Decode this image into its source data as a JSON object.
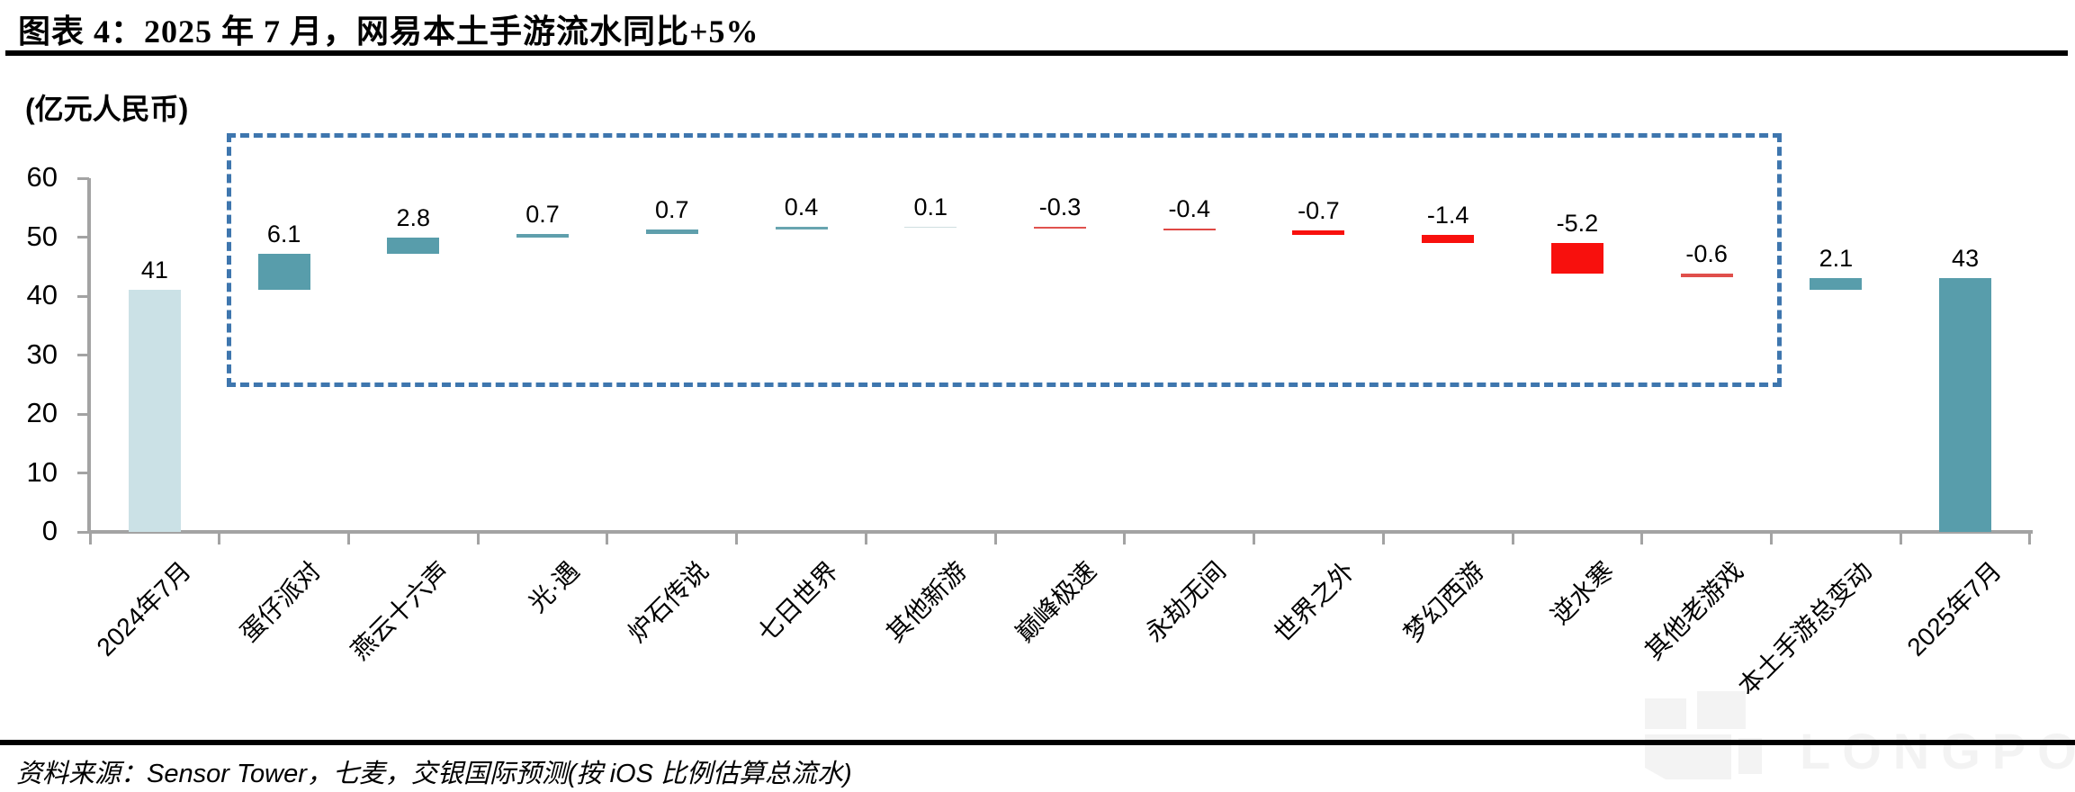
{
  "figure": {
    "title": "图表 4：2025 年 7 月，网易本土手游流水同比+5%",
    "source_note": "资料来源：Sensor Tower，七麦，交银国际预测(按 iOS 比例估算总流水)",
    "watermark": "LONGPORT"
  },
  "chart_data": {
    "type": "bar",
    "subtype": "waterfall",
    "title": "2025年7月，网易本土手游流水同比+5%",
    "unit_label": "(亿元人民币)",
    "xlabel": "",
    "ylabel": "亿元人民币",
    "ylim": [
      0,
      60
    ],
    "yticks": [
      0,
      10,
      20,
      30,
      40,
      50,
      60
    ],
    "grid": false,
    "legend": false,
    "categories": [
      "2024年7月",
      "蛋仔派对",
      "燕云十六声",
      "光·遇",
      "炉石传说",
      "七日世界",
      "其他新游",
      "巅峰极速",
      "永劫无间",
      "世界之外",
      "梦幻西游",
      "逆水寒",
      "其他老游戏",
      "本土手游总变动",
      "2025年7月"
    ],
    "points": [
      {
        "category": "2024年7月",
        "value": 41,
        "label": "41",
        "kind": "absolute",
        "color": "#cbe1e6"
      },
      {
        "category": "蛋仔派对",
        "value": 6.1,
        "label": "6.1",
        "kind": "delta",
        "color": "#589dab"
      },
      {
        "category": "燕云十六声",
        "value": 2.8,
        "label": "2.8",
        "kind": "delta",
        "color": "#589dab"
      },
      {
        "category": "光·遇",
        "value": 0.7,
        "label": "0.7",
        "kind": "delta",
        "color": "#5f9fac"
      },
      {
        "category": "炉石传说",
        "value": 0.7,
        "label": "0.7",
        "kind": "delta",
        "color": "#5f9fac"
      },
      {
        "category": "七日世界",
        "value": 0.4,
        "label": "0.4",
        "kind": "delta",
        "color": "#68a5b0"
      },
      {
        "category": "其他新游",
        "value": 0.1,
        "label": "0.1",
        "kind": "delta",
        "color": "#cfdfe0"
      },
      {
        "category": "巅峰极速",
        "value": -0.3,
        "label": "-0.3",
        "kind": "delta",
        "color": "#e0524e"
      },
      {
        "category": "永劫无间",
        "value": -0.4,
        "label": "-0.4",
        "kind": "delta",
        "color": "#df4844"
      },
      {
        "category": "世界之外",
        "value": -0.7,
        "label": "-0.7",
        "kind": "delta",
        "color": "#f8100d"
      },
      {
        "category": "梦幻西游",
        "value": -1.4,
        "label": "-1.4",
        "kind": "delta",
        "color": "#f8100d"
      },
      {
        "category": "逆水寒",
        "value": -5.2,
        "label": "-5.2",
        "kind": "delta",
        "color": "#f8100d"
      },
      {
        "category": "其他老游戏",
        "value": -0.6,
        "label": "-0.6",
        "kind": "delta",
        "color": "#e04f4b"
      },
      {
        "category": "本土手游总变动",
        "value": 2.1,
        "label": "2.1",
        "kind": "total-delta",
        "color": "#589dab"
      },
      {
        "category": "2025年7月",
        "value": 43,
        "label": "43",
        "kind": "absolute",
        "color": "#589dab"
      }
    ],
    "colors": {
      "start_bar": "#cbe1e6",
      "increase": "#589dab",
      "decrease": "#f8100d",
      "highlight_box": "#3e76ae",
      "axis": "#a3a3a3"
    },
    "highlight_box": {
      "from_category": "蛋仔派对",
      "to_category": "其他老游戏"
    }
  }
}
